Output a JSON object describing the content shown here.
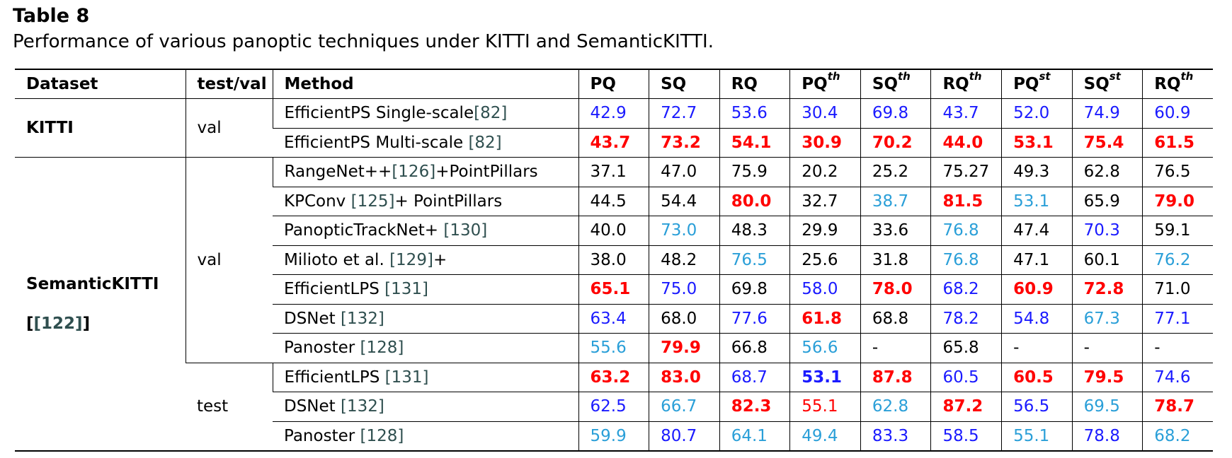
{
  "caption": {
    "label": "Table 8",
    "text": "Performance of various panoptic techniques under KITTI and SemanticKITTI."
  },
  "header": {
    "dataset": "Dataset",
    "split": "test/val",
    "method": "Method",
    "metrics": [
      {
        "base": "PQ",
        "sup": ""
      },
      {
        "base": "SQ",
        "sup": ""
      },
      {
        "base": "RQ",
        "sup": ""
      },
      {
        "base": "PQ",
        "sup": "th"
      },
      {
        "base": "SQ",
        "sup": "th"
      },
      {
        "base": "RQ",
        "sup": "th"
      },
      {
        "base": "PQ",
        "sup": "st"
      },
      {
        "base": "SQ",
        "sup": "st"
      },
      {
        "base": "RQ",
        "sup": "th"
      }
    ]
  },
  "colors": {
    "blue": "#1a1aff",
    "light_blue": "#2a9fd8",
    "red": "#ff0000"
  },
  "datasets": {
    "kitti": {
      "name": "KITTI",
      "split": "val"
    },
    "semantickitti": {
      "name": "SemanticKITTI",
      "ref": "[122]",
      "split_val": "val",
      "split_test": "test"
    }
  },
  "rows": [
    {
      "method": "EfficientPS Single-scale",
      "ref": "[82]",
      "cells": [
        {
          "v": "42.9",
          "c": "bl"
        },
        {
          "v": "72.7",
          "c": "bl"
        },
        {
          "v": "53.6",
          "c": "bl"
        },
        {
          "v": "30.4",
          "c": "bl"
        },
        {
          "v": "69.8",
          "c": "bl"
        },
        {
          "v": "43.7",
          "c": "bl"
        },
        {
          "v": "52.0",
          "c": "bl"
        },
        {
          "v": "74.9",
          "c": "bl"
        },
        {
          "v": "60.9",
          "c": "bl"
        }
      ]
    },
    {
      "method": "EfficientPS Multi-scale ",
      "ref": "[82]",
      "cells": [
        {
          "v": "43.7",
          "c": "rd b"
        },
        {
          "v": "73.2",
          "c": "rd b"
        },
        {
          "v": "54.1",
          "c": "rd b"
        },
        {
          "v": "30.9",
          "c": "rd b"
        },
        {
          "v": "70.2",
          "c": "rd b"
        },
        {
          "v": "44.0",
          "c": "rd b"
        },
        {
          "v": "53.1",
          "c": "rd b"
        },
        {
          "v": "75.4",
          "c": "rd b"
        },
        {
          "v": "61.5",
          "c": "rd b"
        }
      ]
    },
    {
      "method": "RangeNet++",
      "ref": "[126]",
      "suffix": "+PointPillars",
      "cells": [
        {
          "v": "37.1",
          "c": ""
        },
        {
          "v": "47.0",
          "c": ""
        },
        {
          "v": "75.9",
          "c": ""
        },
        {
          "v": "20.2",
          "c": ""
        },
        {
          "v": "25.2",
          "c": ""
        },
        {
          "v": "75.27",
          "c": ""
        },
        {
          "v": "49.3",
          "c": ""
        },
        {
          "v": "62.8",
          "c": ""
        },
        {
          "v": "76.5",
          "c": ""
        }
      ]
    },
    {
      "method": "KPConv ",
      "ref": "[125]",
      "suffix": "+ PointPillars",
      "cells": [
        {
          "v": "44.5",
          "c": ""
        },
        {
          "v": "54.4",
          "c": ""
        },
        {
          "v": "80.0",
          "c": "rd b"
        },
        {
          "v": "32.7",
          "c": ""
        },
        {
          "v": "38.7",
          "c": "lb"
        },
        {
          "v": "81.5",
          "c": "rd b"
        },
        {
          "v": "53.1",
          "c": "lb"
        },
        {
          "v": "65.9",
          "c": ""
        },
        {
          "v": "79.0",
          "c": "rd b"
        }
      ]
    },
    {
      "method": "PanopticTrackNet+ ",
      "ref": "[130]",
      "cells": [
        {
          "v": "40.0",
          "c": ""
        },
        {
          "v": "73.0",
          "c": "lb"
        },
        {
          "v": "48.3",
          "c": ""
        },
        {
          "v": "29.9",
          "c": ""
        },
        {
          "v": "33.6",
          "c": ""
        },
        {
          "v": "76.8",
          "c": "lb"
        },
        {
          "v": "47.4",
          "c": ""
        },
        {
          "v": "70.3",
          "c": "bl"
        },
        {
          "v": "59.1",
          "c": ""
        }
      ]
    },
    {
      "method": "Milioto et al. ",
      "ref": "[129]",
      "suffix": "+",
      "cells": [
        {
          "v": "38.0",
          "c": ""
        },
        {
          "v": "48.2",
          "c": ""
        },
        {
          "v": "76.5",
          "c": "lb"
        },
        {
          "v": "25.6",
          "c": ""
        },
        {
          "v": "31.8",
          "c": ""
        },
        {
          "v": "76.8",
          "c": "lb"
        },
        {
          "v": "47.1",
          "c": ""
        },
        {
          "v": "60.1",
          "c": ""
        },
        {
          "v": "76.2",
          "c": "lb"
        }
      ]
    },
    {
      "method": "EfficientLPS ",
      "ref": "[131]",
      "cells": [
        {
          "v": "65.1",
          "c": "rd b"
        },
        {
          "v": "75.0",
          "c": "bl"
        },
        {
          "v": "69.8",
          "c": ""
        },
        {
          "v": "58.0",
          "c": "bl"
        },
        {
          "v": "78.0",
          "c": "rd b"
        },
        {
          "v": "68.2",
          "c": "bl"
        },
        {
          "v": "60.9",
          "c": "rd b"
        },
        {
          "v": "72.8",
          "c": "rd b"
        },
        {
          "v": "71.0",
          "c": ""
        }
      ]
    },
    {
      "method": "DSNet ",
      "ref": "[132]",
      "cells": [
        {
          "v": "63.4",
          "c": "bl"
        },
        {
          "v": "68.0",
          "c": ""
        },
        {
          "v": "77.6",
          "c": "bl"
        },
        {
          "v": "61.8",
          "c": "rd b"
        },
        {
          "v": "68.8",
          "c": ""
        },
        {
          "v": "78.2",
          "c": "bl"
        },
        {
          "v": "54.8",
          "c": "bl"
        },
        {
          "v": "67.3",
          "c": "lb"
        },
        {
          "v": "77.1",
          "c": "bl"
        }
      ]
    },
    {
      "method": "Panoster ",
      "ref": "[128]",
      "cells": [
        {
          "v": "55.6",
          "c": "lb"
        },
        {
          "v": "79.9",
          "c": "rd b"
        },
        {
          "v": "66.8",
          "c": ""
        },
        {
          "v": "56.6",
          "c": "lb"
        },
        {
          "v": "-",
          "c": ""
        },
        {
          "v": "65.8",
          "c": ""
        },
        {
          "v": "-",
          "c": ""
        },
        {
          "v": "-",
          "c": ""
        },
        {
          "v": "-",
          "c": ""
        }
      ]
    },
    {
      "method": "EfficientLPS ",
      "ref": "[131]",
      "cells": [
        {
          "v": "63.2",
          "c": "rd b"
        },
        {
          "v": "83.0",
          "c": "rd b"
        },
        {
          "v": "68.7",
          "c": "bl"
        },
        {
          "v": "53.1",
          "c": "bl b"
        },
        {
          "v": "87.8",
          "c": "rd b"
        },
        {
          "v": "60.5",
          "c": "bl"
        },
        {
          "v": "60.5",
          "c": "rd b"
        },
        {
          "v": "79.5",
          "c": "rd b"
        },
        {
          "v": "74.6",
          "c": "bl"
        }
      ]
    },
    {
      "method": "DSNet ",
      "ref": "[132]",
      "cells": [
        {
          "v": "62.5",
          "c": "bl"
        },
        {
          "v": "66.7",
          "c": "lb"
        },
        {
          "v": "82.3",
          "c": "rd b"
        },
        {
          "v": "55.1",
          "c": "rd"
        },
        {
          "v": "62.8",
          "c": "lb"
        },
        {
          "v": "87.2",
          "c": "rd b"
        },
        {
          "v": "56.5",
          "c": "bl"
        },
        {
          "v": "69.5",
          "c": "lb"
        },
        {
          "v": "78.7",
          "c": "rd b"
        }
      ]
    },
    {
      "method": "Panoster ",
      "ref": "[128]",
      "cells": [
        {
          "v": "59.9",
          "c": "lb"
        },
        {
          "v": "80.7",
          "c": "bl"
        },
        {
          "v": "64.1",
          "c": "lb"
        },
        {
          "v": "49.4",
          "c": "lb"
        },
        {
          "v": "83.3",
          "c": "bl"
        },
        {
          "v": "58.5",
          "c": "bl"
        },
        {
          "v": "55.1",
          "c": "lb"
        },
        {
          "v": "78.8",
          "c": "bl"
        },
        {
          "v": "68.2",
          "c": "lb"
        }
      ]
    }
  ]
}
